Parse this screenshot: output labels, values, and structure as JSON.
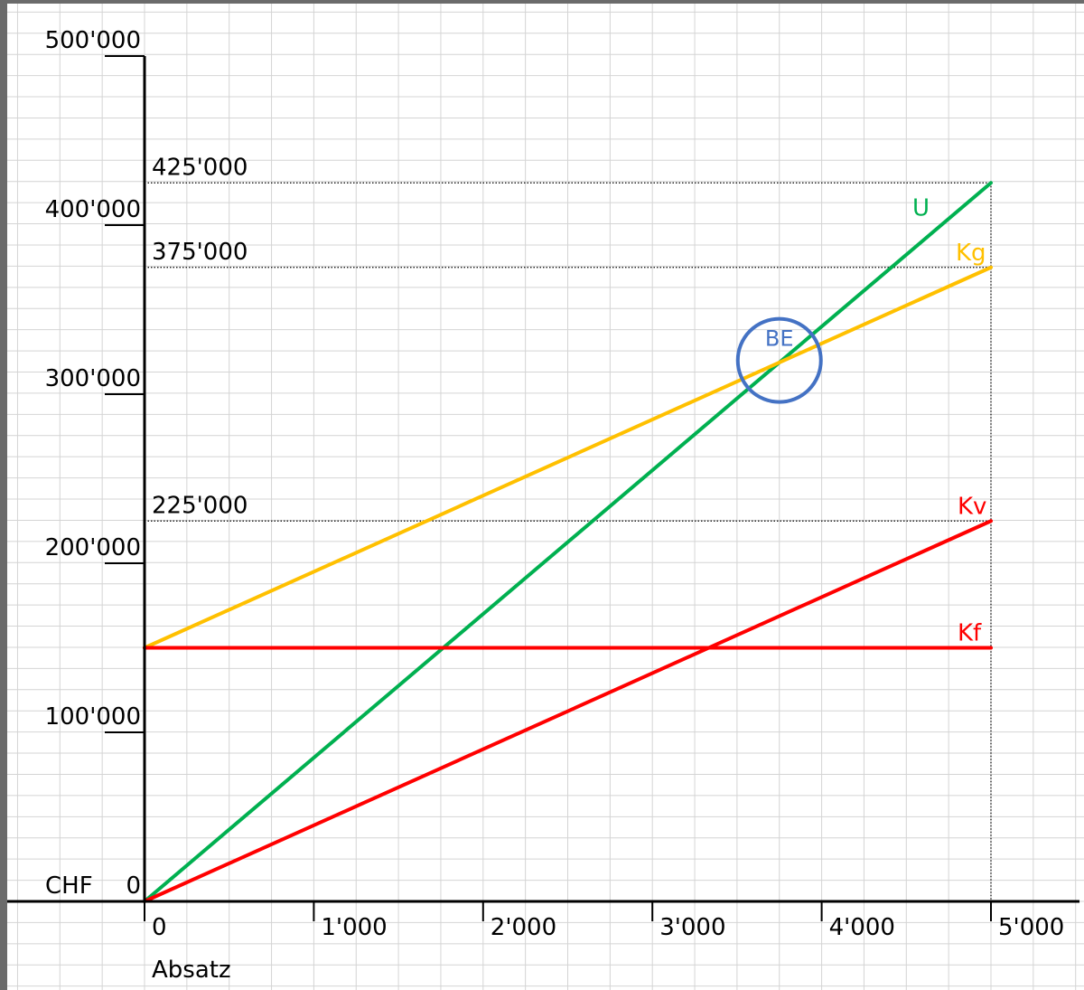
{
  "chart_data": {
    "type": "line",
    "x": [
      0,
      5000
    ],
    "x_ticks": [
      0,
      1000,
      2000,
      3000,
      4000,
      5000
    ],
    "x_tick_labels": [
      "0",
      "1'000",
      "2'000",
      "3'000",
      "4'000",
      "5'000"
    ],
    "y_ticks": [
      0,
      100000,
      200000,
      300000,
      400000,
      500000
    ],
    "y_tick_labels": [
      "0",
      "100'000",
      "200'000",
      "300'000",
      "400'000",
      "500'000"
    ],
    "xlabel": "Absatz",
    "ylabel": "CHF",
    "xlim": [
      0,
      5000
    ],
    "ylim": [
      0,
      500000
    ],
    "grid": true,
    "series": [
      {
        "name": "U",
        "color": "#00b050",
        "x": [
          0,
          5000
        ],
        "y": [
          0,
          425000
        ]
      },
      {
        "name": "Kg",
        "color": "#ffc000",
        "x": [
          0,
          5000
        ],
        "y": [
          150000,
          375000
        ]
      },
      {
        "name": "Kv",
        "color": "#ff0000",
        "x": [
          0,
          5000
        ],
        "y": [
          0,
          225000
        ]
      },
      {
        "name": "Kf",
        "color": "#ff0000",
        "x": [
          0,
          5000
        ],
        "y": [
          150000,
          150000
        ]
      }
    ],
    "reference_lines": [
      {
        "value": 425000,
        "label": "425'000"
      },
      {
        "value": 375000,
        "label": "375'000"
      },
      {
        "value": 225000,
        "label": "225'000"
      }
    ],
    "annotations": [
      {
        "label": "BE",
        "x": 3750,
        "y": 320000,
        "color": "#4472c4"
      }
    ]
  }
}
